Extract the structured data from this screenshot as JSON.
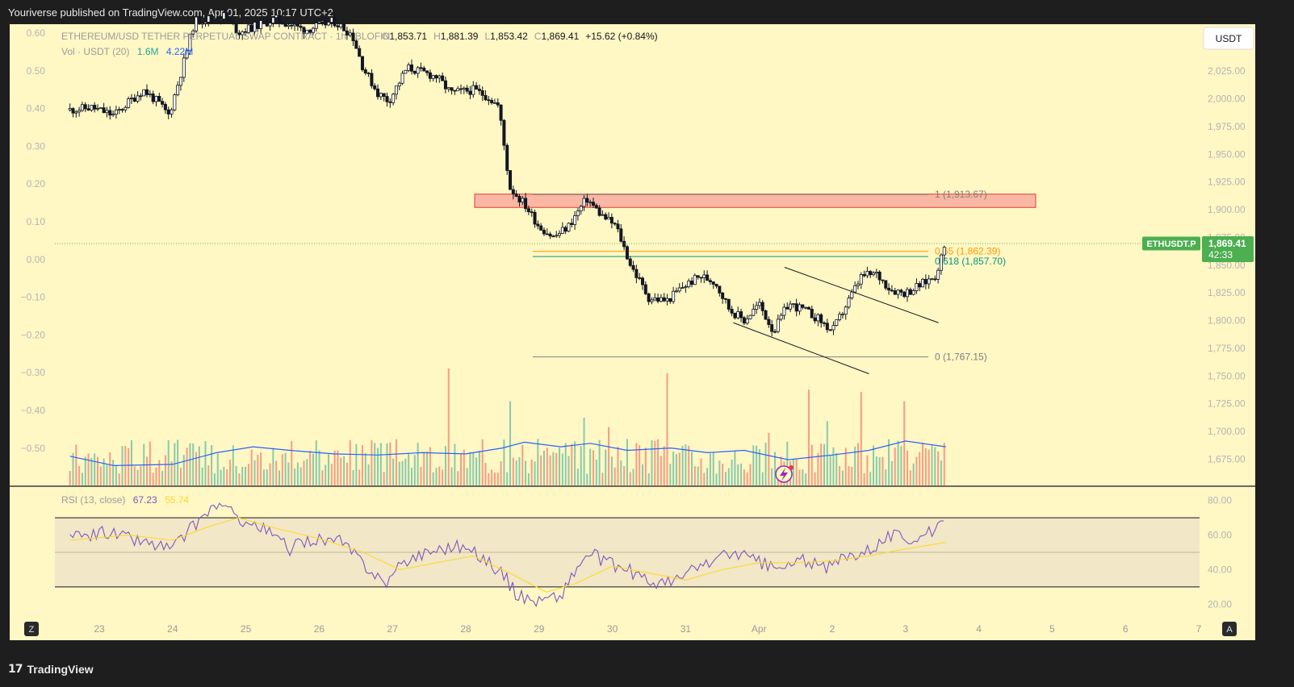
{
  "header": {
    "published_text": "Youriverse published on TradingView.com, Apr 01, 2025 10:17 UTC+2"
  },
  "footer": {
    "logo_mark": "17",
    "logo_text": "TradingView"
  },
  "legend": {
    "symbol_name": "ETHEREUM/USD TETHER PERPETUAL SWAP CONTRACT · 1h · BLOFIN",
    "ohlc": [
      {
        "key": "O",
        "value": "1,853.71"
      },
      {
        "key": "H",
        "value": "1,881.39"
      },
      {
        "key": "L",
        "value": "1,853.42"
      },
      {
        "key": "C",
        "value": "1,869.41"
      }
    ],
    "change": "+15.62 (+0.84%)",
    "volume_label": "Vol · USDT (20)",
    "volume_value": "1.6M",
    "volume_ma_value": "4.22M",
    "rsi_label": "RSI (13, close)",
    "rsi_value": "67.23",
    "rsi_ma_value": "55.74"
  },
  "currency_button": "USDT",
  "price_tag": {
    "symbol": "ETHUSDT.P",
    "price": "1,869.41",
    "countdown": "42:33"
  },
  "corner_buttons": {
    "left": "Z",
    "right": "A"
  },
  "colors": {
    "background": "#fff7c4",
    "frame": "#1e1e1e",
    "up": "#26a69a",
    "down": "#ef5350",
    "candle": "#131722",
    "volume_ma": "#2962ff",
    "rsi": "#7e57c2",
    "rsi_ma": "#fdd835",
    "fib_065": "#ff9800",
    "fib_0618": "#089981",
    "zone": "#f7a19a",
    "price_tag": "#4caf50"
  },
  "chart_data": {
    "type": "candlestick",
    "title": "ETHEREUM/USD TETHER PERPETUAL SWAP CONTRACT · 1h · BLOFIN",
    "price_axis": {
      "range": [
        1660,
        2060
      ],
      "ticks": [
        "2,025.00",
        "2,000.00",
        "1,975.00",
        "1,950.00",
        "1,925.00",
        "1,900.00",
        "1,875.00",
        "1,850.00",
        "1,825.00",
        "1,800.00",
        "1,775.00",
        "1,750.00",
        "1,725.00",
        "1,700.00",
        "1,675.00"
      ],
      "tick_values": [
        2025,
        2000,
        1975,
        1950,
        1925,
        1900,
        1875,
        1850,
        1825,
        1800,
        1775,
        1750,
        1725,
        1700,
        1675
      ]
    },
    "left_axis": {
      "ticks": [
        "0.60",
        "0.50",
        "0.40",
        "0.30",
        "0.20",
        "0.10",
        "0.00",
        "−0.10",
        "−0.20",
        "−0.30",
        "−0.40",
        "−0.50"
      ],
      "tick_values": [
        0.6,
        0.5,
        0.4,
        0.3,
        0.2,
        0.1,
        0.0,
        -0.1,
        -0.2,
        -0.3,
        -0.4,
        -0.5
      ]
    },
    "time_axis": {
      "labels": [
        "23",
        "24",
        "25",
        "26",
        "27",
        "28",
        "29",
        "30",
        "31",
        "Apr",
        "2",
        "3",
        "4",
        "5",
        "6",
        "7"
      ],
      "day_index": [
        0,
        1,
        2,
        3,
        4,
        5,
        6,
        7,
        8,
        9,
        10,
        11,
        12,
        13,
        14,
        15
      ],
      "first_day_offset": 0.4
    },
    "price_path": [
      {
        "d": 0.0,
        "p": 1990
      },
      {
        "d": 0.3,
        "p": 1992
      },
      {
        "d": 0.6,
        "p": 1985
      },
      {
        "d": 0.8,
        "p": 1997
      },
      {
        "d": 1.0,
        "p": 2008
      },
      {
        "d": 1.2,
        "p": 1997
      },
      {
        "d": 1.35,
        "p": 1985
      },
      {
        "d": 1.5,
        "p": 2020
      },
      {
        "d": 1.7,
        "p": 2070
      },
      {
        "d": 2.1,
        "p": 2075
      },
      {
        "d": 2.3,
        "p": 2060
      },
      {
        "d": 2.8,
        "p": 2072
      },
      {
        "d": 3.2,
        "p": 2062
      },
      {
        "d": 3.6,
        "p": 2070
      },
      {
        "d": 3.85,
        "p": 2058
      },
      {
        "d": 4.0,
        "p": 2028
      },
      {
        "d": 4.2,
        "p": 2005
      },
      {
        "d": 4.35,
        "p": 1998
      },
      {
        "d": 4.6,
        "p": 2028
      },
      {
        "d": 5.0,
        "p": 2020
      },
      {
        "d": 5.2,
        "p": 2005
      },
      {
        "d": 5.5,
        "p": 2008
      },
      {
        "d": 5.7,
        "p": 2002
      },
      {
        "d": 5.85,
        "p": 1993
      },
      {
        "d": 6.0,
        "p": 1920
      },
      {
        "d": 6.2,
        "p": 1905
      },
      {
        "d": 6.4,
        "p": 1885
      },
      {
        "d": 6.6,
        "p": 1875
      },
      {
        "d": 6.8,
        "p": 1885
      },
      {
        "d": 6.95,
        "p": 1900
      },
      {
        "d": 7.05,
        "p": 1910
      },
      {
        "d": 7.25,
        "p": 1895
      },
      {
        "d": 7.45,
        "p": 1885
      },
      {
        "d": 7.65,
        "p": 1850
      },
      {
        "d": 7.9,
        "p": 1820
      },
      {
        "d": 8.15,
        "p": 1818
      },
      {
        "d": 8.35,
        "p": 1830
      },
      {
        "d": 8.6,
        "p": 1840
      },
      {
        "d": 8.8,
        "p": 1835
      },
      {
        "d": 9.0,
        "p": 1810
      },
      {
        "d": 9.2,
        "p": 1800
      },
      {
        "d": 9.4,
        "p": 1815
      },
      {
        "d": 9.6,
        "p": 1790
      },
      {
        "d": 9.8,
        "p": 1815
      },
      {
        "d": 10.0,
        "p": 1810
      },
      {
        "d": 10.2,
        "p": 1802
      },
      {
        "d": 10.4,
        "p": 1790
      },
      {
        "d": 10.6,
        "p": 1815
      },
      {
        "d": 10.8,
        "p": 1840
      },
      {
        "d": 11.0,
        "p": 1842
      },
      {
        "d": 11.2,
        "p": 1828
      },
      {
        "d": 11.4,
        "p": 1825
      },
      {
        "d": 11.6,
        "p": 1832
      },
      {
        "d": 11.8,
        "p": 1840
      },
      {
        "d": 11.95,
        "p": 1869
      }
    ],
    "demand_zone": {
      "price_low": 1902,
      "price_high": 1914
    },
    "fib_levels": [
      {
        "label": "1 (1,913.67)",
        "value": 1913.67
      },
      {
        "label": "0.65 (1,862.39)",
        "value": 1862.39
      },
      {
        "label": "0.618 (1,857.70)",
        "value": 1857.7
      },
      {
        "label": "0 (1,767.15)",
        "value": 1767.15
      }
    ],
    "channel_lines": [
      {
        "from": {
          "d": 9.75,
          "p": 1848
        },
        "to": {
          "d": 11.85,
          "p": 1798
        }
      },
      {
        "from": {
          "d": 9.05,
          "p": 1798
        },
        "to": {
          "d": 10.9,
          "p": 1752
        }
      }
    ],
    "current_price": 1869.41,
    "rsi": {
      "range": [
        15,
        85
      ],
      "ticks": [
        "80.00",
        "60.00",
        "40.00",
        "20.00"
      ],
      "tick_values": [
        80,
        60,
        40,
        20
      ],
      "band": [
        30,
        70
      ],
      "mid": 50,
      "path": [
        {
          "d": 0.0,
          "p": 58
        },
        {
          "d": 0.5,
          "p": 62
        },
        {
          "d": 1.0,
          "p": 56
        },
        {
          "d": 1.4,
          "p": 52
        },
        {
          "d": 1.7,
          "p": 66
        },
        {
          "d": 2.0,
          "p": 78
        },
        {
          "d": 2.3,
          "p": 70
        },
        {
          "d": 2.7,
          "p": 62
        },
        {
          "d": 3.0,
          "p": 52
        },
        {
          "d": 3.3,
          "p": 58
        },
        {
          "d": 3.7,
          "p": 56
        },
        {
          "d": 4.0,
          "p": 44
        },
        {
          "d": 4.3,
          "p": 32
        },
        {
          "d": 4.6,
          "p": 46
        },
        {
          "d": 5.0,
          "p": 52
        },
        {
          "d": 5.3,
          "p": 54
        },
        {
          "d": 5.6,
          "p": 48
        },
        {
          "d": 5.9,
          "p": 38
        },
        {
          "d": 6.1,
          "p": 25
        },
        {
          "d": 6.4,
          "p": 22
        },
        {
          "d": 6.7,
          "p": 25
        },
        {
          "d": 6.9,
          "p": 40
        },
        {
          "d": 7.1,
          "p": 50
        },
        {
          "d": 7.3,
          "p": 44
        },
        {
          "d": 7.6,
          "p": 40
        },
        {
          "d": 7.9,
          "p": 33
        },
        {
          "d": 8.2,
          "p": 32
        },
        {
          "d": 8.5,
          "p": 40
        },
        {
          "d": 8.8,
          "p": 46
        },
        {
          "d": 9.1,
          "p": 50
        },
        {
          "d": 9.4,
          "p": 44
        },
        {
          "d": 9.7,
          "p": 40
        },
        {
          "d": 10.0,
          "p": 46
        },
        {
          "d": 10.3,
          "p": 40
        },
        {
          "d": 10.6,
          "p": 48
        },
        {
          "d": 10.9,
          "p": 52
        },
        {
          "d": 11.2,
          "p": 60
        },
        {
          "d": 11.5,
          "p": 58
        },
        {
          "d": 11.8,
          "p": 62
        },
        {
          "d": 11.95,
          "p": 67.23
        }
      ],
      "ma_path": [
        {
          "d": 0.0,
          "p": 57
        },
        {
          "d": 0.8,
          "p": 60
        },
        {
          "d": 1.4,
          "p": 57
        },
        {
          "d": 1.9,
          "p": 65
        },
        {
          "d": 2.3,
          "p": 70
        },
        {
          "d": 2.8,
          "p": 64
        },
        {
          "d": 3.4,
          "p": 58
        },
        {
          "d": 4.0,
          "p": 50
        },
        {
          "d": 4.5,
          "p": 40
        },
        {
          "d": 5.0,
          "p": 44
        },
        {
          "d": 5.5,
          "p": 48
        },
        {
          "d": 6.0,
          "p": 38
        },
        {
          "d": 6.5,
          "p": 27
        },
        {
          "d": 6.9,
          "p": 32
        },
        {
          "d": 7.4,
          "p": 42
        },
        {
          "d": 7.9,
          "p": 38
        },
        {
          "d": 8.4,
          "p": 34
        },
        {
          "d": 8.9,
          "p": 40
        },
        {
          "d": 9.4,
          "p": 44
        },
        {
          "d": 9.9,
          "p": 44
        },
        {
          "d": 10.4,
          "p": 45
        },
        {
          "d": 10.9,
          "p": 48
        },
        {
          "d": 11.4,
          "p": 52
        },
        {
          "d": 11.95,
          "p": 55.74
        }
      ]
    },
    "volume": {
      "range": [
        0,
        100
      ],
      "ma_path": [
        {
          "d": 0.0,
          "p": 25
        },
        {
          "d": 0.6,
          "p": 17
        },
        {
          "d": 1.4,
          "p": 18
        },
        {
          "d": 2.0,
          "p": 28
        },
        {
          "d": 2.5,
          "p": 33
        },
        {
          "d": 3.0,
          "p": 30
        },
        {
          "d": 3.6,
          "p": 27
        },
        {
          "d": 4.2,
          "p": 26
        },
        {
          "d": 4.8,
          "p": 28
        },
        {
          "d": 5.4,
          "p": 27
        },
        {
          "d": 5.9,
          "p": 32
        },
        {
          "d": 6.2,
          "p": 37
        },
        {
          "d": 6.7,
          "p": 33
        },
        {
          "d": 7.1,
          "p": 36
        },
        {
          "d": 7.6,
          "p": 30
        },
        {
          "d": 8.2,
          "p": 32
        },
        {
          "d": 8.7,
          "p": 28
        },
        {
          "d": 9.2,
          "p": 30
        },
        {
          "d": 9.8,
          "p": 22
        },
        {
          "d": 10.4,
          "p": 26
        },
        {
          "d": 10.9,
          "p": 30
        },
        {
          "d": 11.4,
          "p": 38
        },
        {
          "d": 11.95,
          "p": 33
        }
      ],
      "spikes": [
        {
          "d": 5.15,
          "p": 100
        },
        {
          "d": 6.0,
          "p": 72
        },
        {
          "d": 7.0,
          "p": 58
        },
        {
          "d": 7.35,
          "p": 50
        },
        {
          "d": 8.15,
          "p": 96
        },
        {
          "d": 9.55,
          "p": 45
        },
        {
          "d": 10.1,
          "p": 82
        },
        {
          "d": 10.35,
          "p": 55
        },
        {
          "d": 10.8,
          "p": 80
        },
        {
          "d": 11.4,
          "p": 72
        }
      ]
    }
  }
}
